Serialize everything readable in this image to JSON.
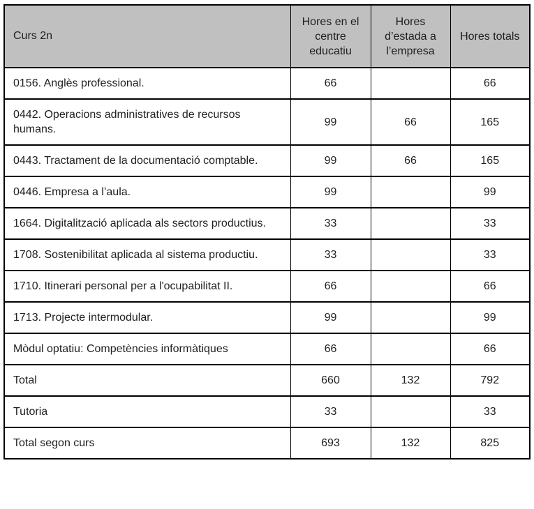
{
  "colors": {
    "header_bg": "#c0c0c0",
    "border": "#000000",
    "text": "#1f1f1f",
    "page_bg": "#ffffff"
  },
  "table": {
    "header": {
      "course": "Curs 2n",
      "centre": "Hores en el centre educatiu",
      "empresa": "Hores d’estada a l’empresa",
      "totals": "Hores totals"
    },
    "rows": [
      {
        "label": "0156. Anglès professional.",
        "centre": "66",
        "empresa": "",
        "totals": "66"
      },
      {
        "label": "0442. Operacions administratives de recursos humans.",
        "centre": "99",
        "empresa": "66",
        "totals": "165"
      },
      {
        "label": "0443. Tractament de la documentació comptable.",
        "centre": "99",
        "empresa": "66",
        "totals": "165"
      },
      {
        "label": "0446. Empresa a l’aula.",
        "centre": "99",
        "empresa": "",
        "totals": "99"
      },
      {
        "label": "1664. Digitalització aplicada als sectors productius.",
        "centre": "33",
        "empresa": "",
        "totals": "33"
      },
      {
        "label": "1708. Sostenibilitat aplicada al sistema productiu.",
        "centre": "33",
        "empresa": "",
        "totals": "33"
      },
      {
        "label": "1710. Itinerari personal per a l'ocupabilitat II.",
        "centre": "66",
        "empresa": "",
        "totals": "66"
      },
      {
        "label": "1713. Projecte intermodular.",
        "centre": "99",
        "empresa": "",
        "totals": "99"
      },
      {
        "label": "Mòdul optatiu: Competències informàtiques",
        "centre": "66",
        "empresa": "",
        "totals": "66"
      },
      {
        "label": "Total",
        "centre": "660",
        "empresa": "132",
        "totals": "792"
      },
      {
        "label": "Tutoria",
        "centre": "33",
        "empresa": "",
        "totals": "33"
      },
      {
        "label": "Total segon curs",
        "centre": "693",
        "empresa": "132",
        "totals": "825"
      }
    ]
  }
}
